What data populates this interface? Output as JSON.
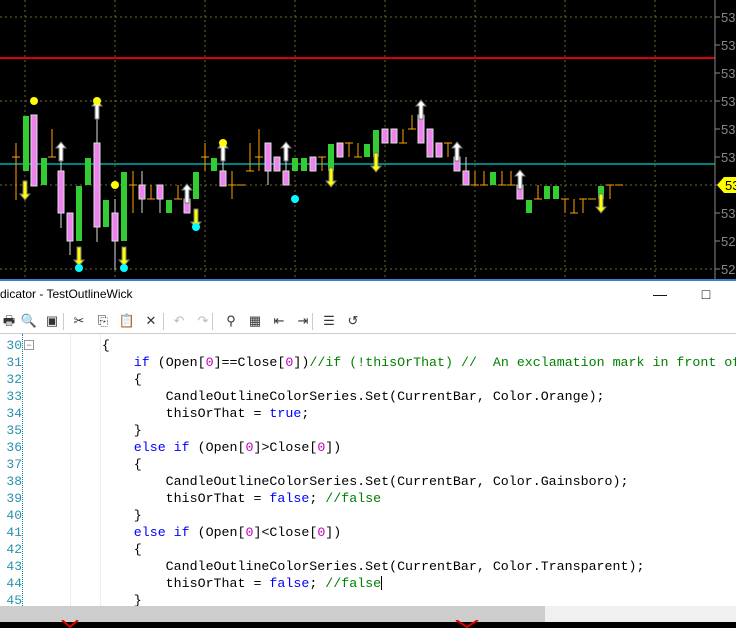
{
  "chart": {
    "axis_labels": [
      "53",
      "53",
      "53",
      "53",
      "53",
      "53",
      "53",
      "53",
      "52",
      "52"
    ],
    "price_marker": "53",
    "colors": {
      "bull": "#33cc33",
      "bear": "#ee82ee",
      "doji": "#ffa500",
      "red_line": "#dd0000",
      "cyan_line": "#00ffff",
      "grid": "#6b6b2a",
      "marker": "#ffff00"
    }
  },
  "editor": {
    "title": "dicator - TestOutlineWick",
    "minimize_icon": "minimize-icon",
    "maximize_icon": "maximize-icon",
    "toolbar": [
      "print",
      "print-preview",
      "properties",
      "cut",
      "copy",
      "paste",
      "delete",
      "undo",
      "redo",
      "find",
      "replace",
      "outdent",
      "indent",
      "comment",
      "uncomment"
    ],
    "lines": [
      {
        "n": "30",
        "fold": true,
        "seg": [
          [
            "tx",
            "        {"
          ]
        ]
      },
      {
        "n": "31",
        "seg": [
          [
            "tx",
            "            "
          ],
          [
            "kw",
            "if"
          ],
          [
            "tx",
            " (Open["
          ],
          [
            "num",
            "0"
          ],
          [
            "tx",
            "]==Close["
          ],
          [
            "num",
            "0"
          ],
          [
            "tx",
            "])"
          ],
          [
            "cm",
            "//if (!thisOrThat) //  An exclamation mark in front of"
          ]
        ]
      },
      {
        "n": "32",
        "seg": [
          [
            "tx",
            "            {"
          ]
        ]
      },
      {
        "n": "33",
        "seg": [
          [
            "tx",
            "                CandleOutlineColorSeries.Set(CurrentBar, Color.Orange);"
          ]
        ]
      },
      {
        "n": "34",
        "seg": [
          [
            "tx",
            "                thisOrThat = "
          ],
          [
            "kw",
            "true"
          ],
          [
            "tx",
            ";"
          ]
        ]
      },
      {
        "n": "35",
        "seg": [
          [
            "tx",
            "            }"
          ]
        ]
      },
      {
        "n": "36",
        "seg": [
          [
            "tx",
            "            "
          ],
          [
            "kw",
            "else if"
          ],
          [
            "tx",
            " (Open["
          ],
          [
            "num",
            "0"
          ],
          [
            "tx",
            "]>Close["
          ],
          [
            "num",
            "0"
          ],
          [
            "tx",
            "])"
          ]
        ]
      },
      {
        "n": "37",
        "seg": [
          [
            "tx",
            "            {"
          ]
        ]
      },
      {
        "n": "38",
        "seg": [
          [
            "tx",
            "                CandleOutlineColorSeries.Set(CurrentBar, Color.Gainsboro);"
          ]
        ]
      },
      {
        "n": "39",
        "seg": [
          [
            "tx",
            "                thisOrThat = "
          ],
          [
            "kw",
            "false"
          ],
          [
            "tx",
            "; "
          ],
          [
            "cm",
            "//false"
          ]
        ]
      },
      {
        "n": "40",
        "seg": [
          [
            "tx",
            "            }"
          ]
        ]
      },
      {
        "n": "41",
        "seg": [
          [
            "tx",
            "            "
          ],
          [
            "kw",
            "else if"
          ],
          [
            "tx",
            " (Open["
          ],
          [
            "num",
            "0"
          ],
          [
            "tx",
            "]<Close["
          ],
          [
            "num",
            "0"
          ],
          [
            "tx",
            "])"
          ]
        ]
      },
      {
        "n": "42",
        "seg": [
          [
            "tx",
            "            {"
          ]
        ]
      },
      {
        "n": "43",
        "seg": [
          [
            "tx",
            "                CandleOutlineColorSeries.Set(CurrentBar, Color.Transparent);"
          ]
        ]
      },
      {
        "n": "44",
        "caret": true,
        "seg": [
          [
            "tx",
            "                thisOrThat = "
          ],
          [
            "kw",
            "false"
          ],
          [
            "tx",
            "; "
          ],
          [
            "cm",
            "//false"
          ]
        ]
      },
      {
        "n": "45",
        "seg": [
          [
            "tx",
            "            }"
          ]
        ]
      }
    ]
  }
}
